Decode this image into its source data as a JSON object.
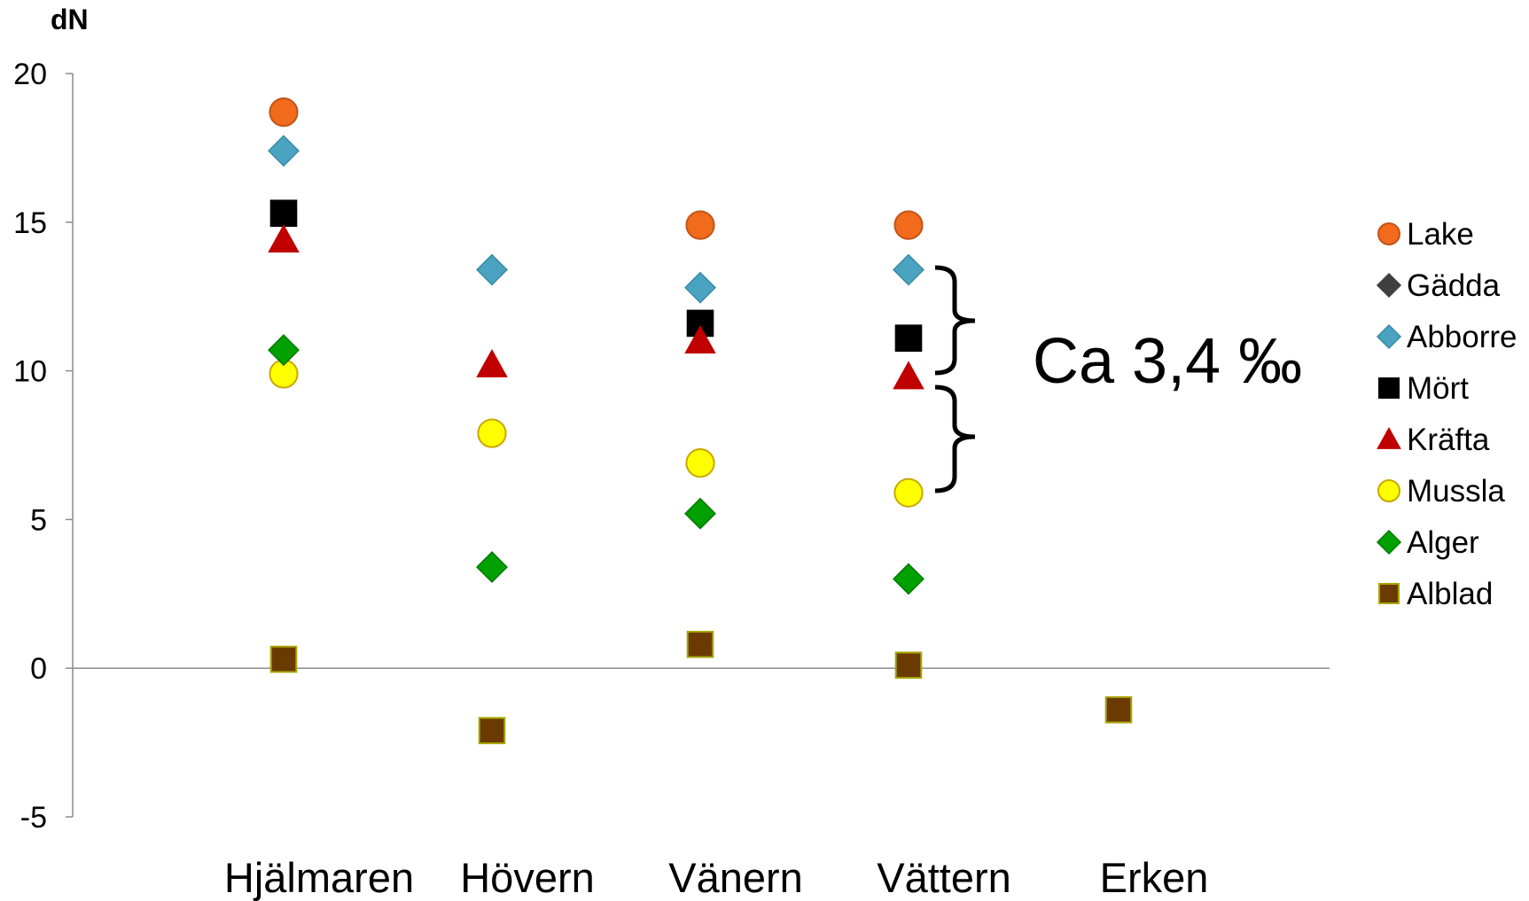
{
  "chart_data": {
    "type": "scatter",
    "ylabel": "dN",
    "xlabel": "",
    "ylim": [
      -5,
      20
    ],
    "yticks": [
      20,
      15,
      10,
      5,
      0,
      -5
    ],
    "categories": [
      "Hjälmaren",
      "Hövern",
      "Vänern",
      "Vättern",
      "Erken"
    ],
    "series": [
      {
        "name": "Lake",
        "marker": "circle",
        "color": "#f26a1b",
        "stroke": "#c0561a",
        "values": [
          18.7,
          null,
          14.9,
          14.9,
          null
        ]
      },
      {
        "name": "Gädda",
        "marker": "diamond",
        "color": "#404040",
        "stroke": "#404040",
        "values": [
          null,
          null,
          null,
          null,
          null
        ]
      },
      {
        "name": "Abborre",
        "marker": "diamond",
        "color": "#4aa3c0",
        "stroke": "#3a8aa5",
        "values": [
          17.4,
          13.4,
          12.8,
          13.4,
          null
        ]
      },
      {
        "name": "Mört",
        "marker": "square",
        "color": "#000000",
        "stroke": "#000000",
        "values": [
          15.3,
          null,
          11.6,
          11.1,
          null
        ]
      },
      {
        "name": "Kräfta",
        "marker": "triangle",
        "color": "#c00000",
        "stroke": "#c00000",
        "values": [
          14.4,
          10.2,
          11.0,
          9.8,
          null
        ]
      },
      {
        "name": "Mussla",
        "marker": "circle",
        "color": "#ffff00",
        "stroke": "#c9a800",
        "values": [
          9.9,
          7.9,
          6.9,
          5.9,
          null
        ]
      },
      {
        "name": "Alger",
        "marker": "diamond",
        "color": "#00a000",
        "stroke": "#007a00",
        "values": [
          10.7,
          3.4,
          5.2,
          3.0,
          null
        ]
      },
      {
        "name": "Alblad",
        "marker": "square",
        "color": "#6b3a00",
        "stroke": "#a8a800",
        "values": [
          0.3,
          -2.1,
          0.8,
          0.1,
          -1.4
        ]
      }
    ],
    "annotation": "Ca 3,4 ‰",
    "legend_position": "right",
    "grid": false
  }
}
